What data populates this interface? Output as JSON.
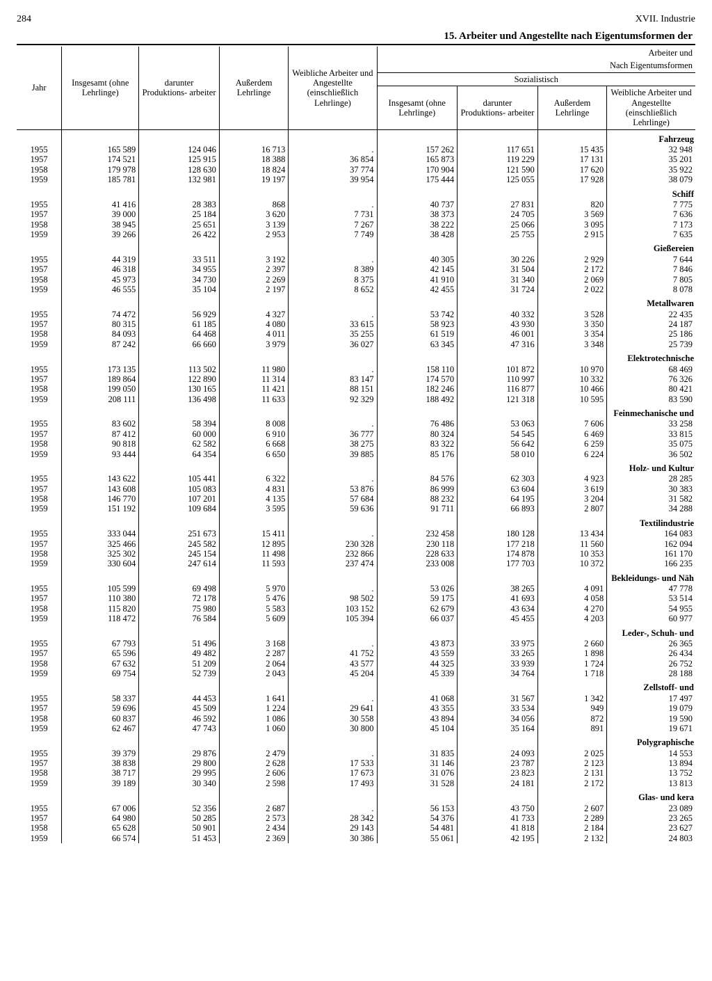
{
  "page": {
    "number": "284",
    "chapter": "XVII. Industrie"
  },
  "title": "15. Arbeiter und Angestellte nach Eigentumsformen der",
  "headers": {
    "super_right": "Arbeiter und",
    "nach_eigentum": "Nach Eigentumsformen",
    "sozialistisch": "Sozialistisch",
    "jahr": "Jahr",
    "c1": "Insgesamt (ohne Lehrlinge)",
    "c2": "darunter Produktions- arbeiter",
    "c3": "Außerdem Lehrlinge",
    "c4": "Weibliche Arbeiter und Angestellte (einschließlich Lehrlinge)",
    "c5": "Insgesamt (ohne Lehrlinge)",
    "c6": "darunter Produktions- arbeiter",
    "c7": "Außerdem Lehrlinge",
    "c8": "Weibliche Arbeiter und Angestellte (einschließlich Lehrlinge)"
  },
  "sections": [
    {
      "label": "Fahrzeug",
      "rows": [
        [
          "1955",
          "165 589",
          "124 046",
          "16 713",
          ".",
          "157 262",
          "117 651",
          "15 435",
          "32 948"
        ],
        [
          "1957",
          "174 521",
          "125 915",
          "18 388",
          "36 854",
          "165 873",
          "119 229",
          "17 131",
          "35 201"
        ],
        [
          "1958",
          "179 978",
          "128 630",
          "18 824",
          "37 774",
          "170 904",
          "121 590",
          "17 620",
          "35 922"
        ],
        [
          "1959",
          "185 781",
          "132 981",
          "19 197",
          "39 954",
          "175 444",
          "125 055",
          "17 928",
          "38 079"
        ]
      ]
    },
    {
      "label": "Schiff",
      "rows": [
        [
          "1955",
          "41 416",
          "28 383",
          "868",
          ".",
          "40 737",
          "27 831",
          "820",
          "7 775"
        ],
        [
          "1957",
          "39 000",
          "25 184",
          "3 620",
          "7 731",
          "38 373",
          "24 705",
          "3 569",
          "7 636"
        ],
        [
          "1958",
          "38 945",
          "25 651",
          "3 139",
          "7 267",
          "38 222",
          "25 066",
          "3 095",
          "7 173"
        ],
        [
          "1959",
          "39 266",
          "26 422",
          "2 953",
          "7 749",
          "38 428",
          "25 755",
          "2 915",
          "7 635"
        ]
      ]
    },
    {
      "label": "Gießereien",
      "rows": [
        [
          "1955",
          "44 319",
          "33 511",
          "3 192",
          ".",
          "40 305",
          "30 226",
          "2 929",
          "7 644"
        ],
        [
          "1957",
          "46 318",
          "34 955",
          "2 397",
          "8 389",
          "42 145",
          "31 504",
          "2 172",
          "7 846"
        ],
        [
          "1958",
          "45 973",
          "34 730",
          "2 269",
          "8 375",
          "41 910",
          "31 340",
          "2 069",
          "7 805"
        ],
        [
          "1959",
          "46 555",
          "35 104",
          "2 197",
          "8 652",
          "42 455",
          "31 724",
          "2 022",
          "8 078"
        ]
      ]
    },
    {
      "label": "Metallwaren",
      "rows": [
        [
          "1955",
          "74 472",
          "56 929",
          "4 327",
          ".",
          "53 742",
          "40 332",
          "3 528",
          "22 435"
        ],
        [
          "1957",
          "80 315",
          "61 185",
          "4 080",
          "33 615",
          "58 923",
          "43 930",
          "3 350",
          "24 187"
        ],
        [
          "1958",
          "84 093",
          "64 468",
          "4 011",
          "35 255",
          "61 519",
          "46 001",
          "3 354",
          "25 186"
        ],
        [
          "1959",
          "87 242",
          "66 660",
          "3 979",
          "36 027",
          "63 345",
          "47 316",
          "3 348",
          "25 739"
        ]
      ]
    },
    {
      "label": "Elektrotechnische",
      "rows": [
        [
          "1955",
          "173 135",
          "113 502",
          "11 980",
          ".",
          "158 110",
          "101 872",
          "10 970",
          "68 469"
        ],
        [
          "1957",
          "189 864",
          "122 890",
          "11 314",
          "83 147",
          "174 570",
          "110 997",
          "10 332",
          "76 326"
        ],
        [
          "1958",
          "199 050",
          "130 165",
          "11 421",
          "88 151",
          "182 246",
          "116 877",
          "10 466",
          "80 421"
        ],
        [
          "1959",
          "208 111",
          "136 498",
          "11 633",
          "92 329",
          "188 492",
          "121 318",
          "10 595",
          "83 590"
        ]
      ]
    },
    {
      "label": "Feinmechanische und",
      "rows": [
        [
          "1955",
          "83 602",
          "58 394",
          "8 008",
          ".",
          "76 486",
          "53 063",
          "7 606",
          "33 258"
        ],
        [
          "1957",
          "87 412",
          "60 000",
          "6 910",
          "36 777",
          "80 324",
          "54 545",
          "6 469",
          "33 815"
        ],
        [
          "1958",
          "90 818",
          "62 582",
          "6 668",
          "38 275",
          "83 322",
          "56 642",
          "6 259",
          "35 075"
        ],
        [
          "1959",
          "93 444",
          "64 354",
          "6 650",
          "39 885",
          "85 176",
          "58 010",
          "6 224",
          "36 502"
        ]
      ]
    },
    {
      "label": "Holz- und Kultur",
      "rows": [
        [
          "1955",
          "143 622",
          "105 441",
          "6 322",
          ".",
          "84 576",
          "62 303",
          "4 923",
          "28 285"
        ],
        [
          "1957",
          "143 608",
          "105 083",
          "4 831",
          "53 876",
          "86 999",
          "63 604",
          "3 619",
          "30 383"
        ],
        [
          "1958",
          "146 770",
          "107 201",
          "4 135",
          "57 684",
          "88 232",
          "64 195",
          "3 204",
          "31 582"
        ],
        [
          "1959",
          "151 192",
          "109 684",
          "3 595",
          "59 636",
          "91 711",
          "66 893",
          "2 807",
          "34 288"
        ]
      ]
    },
    {
      "label": "Textilindustrie",
      "rows": [
        [
          "1955",
          "333 044",
          "251 673",
          "15 411",
          ".",
          "232 458",
          "180 128",
          "13 434",
          "164 083"
        ],
        [
          "1957",
          "325 466",
          "245 582",
          "12 895",
          "230 328",
          "230 118",
          "177 218",
          "11 560",
          "162 094"
        ],
        [
          "1958",
          "325 302",
          "245 154",
          "11 498",
          "232 866",
          "228 633",
          "174 878",
          "10 353",
          "161 170"
        ],
        [
          "1959",
          "330 604",
          "247 614",
          "11 593",
          "237 474",
          "233 008",
          "177 703",
          "10 372",
          "166 235"
        ]
      ]
    },
    {
      "label": "Bekleidungs- und Näh",
      "rows": [
        [
          "1955",
          "105 599",
          "69 498",
          "5 970",
          ".",
          "53 026",
          "38 265",
          "4 091",
          "47 778"
        ],
        [
          "1957",
          "110 380",
          "72 178",
          "5 476",
          "98 502",
          "59 175",
          "41 693",
          "4 058",
          "53 514"
        ],
        [
          "1958",
          "115 820",
          "75 980",
          "5 583",
          "103 152",
          "62 679",
          "43 634",
          "4 270",
          "54 955"
        ],
        [
          "1959",
          "118 472",
          "76 584",
          "5 609",
          "105 394",
          "66 037",
          "45 455",
          "4 203",
          "60 977"
        ]
      ]
    },
    {
      "label": "Leder-, Schuh- und",
      "rows": [
        [
          "1955",
          "67 793",
          "51 496",
          "3 168",
          ".",
          "43 873",
          "33 975",
          "2 660",
          "26 365"
        ],
        [
          "1957",
          "65 596",
          "49 482",
          "2 287",
          "41 752",
          "43 559",
          "33 265",
          "1 898",
          "26 434"
        ],
        [
          "1958",
          "67 632",
          "51 209",
          "2 064",
          "43 577",
          "44 325",
          "33 939",
          "1 724",
          "26 752"
        ],
        [
          "1959",
          "69 754",
          "52 739",
          "2 043",
          "45 204",
          "45 339",
          "34 764",
          "1 718",
          "28 188"
        ]
      ]
    },
    {
      "label": "Zellstoff- und",
      "rows": [
        [
          "1955",
          "58 337",
          "44 453",
          "1 641",
          ".",
          "41 068",
          "31 567",
          "1 342",
          "17 497"
        ],
        [
          "1957",
          "59 696",
          "45 509",
          "1 224",
          "29 641",
          "43 355",
          "33 534",
          "949",
          "19 079"
        ],
        [
          "1958",
          "60 837",
          "46 592",
          "1 086",
          "30 558",
          "43 894",
          "34 056",
          "872",
          "19 590"
        ],
        [
          "1959",
          "62 467",
          "47 743",
          "1 060",
          "30 800",
          "45 104",
          "35 164",
          "891",
          "19 671"
        ]
      ]
    },
    {
      "label": "Polygraphische",
      "rows": [
        [
          "1955",
          "39 379",
          "29 876",
          "2 479",
          ".",
          "31 835",
          "24 093",
          "2 025",
          "14 553"
        ],
        [
          "1957",
          "38 838",
          "29 800",
          "2 628",
          "17 533",
          "31 146",
          "23 787",
          "2 123",
          "13 894"
        ],
        [
          "1958",
          "38 717",
          "29 995",
          "2 606",
          "17 673",
          "31 076",
          "23 823",
          "2 131",
          "13 752"
        ],
        [
          "1959",
          "39 189",
          "30 340",
          "2 598",
          "17 493",
          "31 528",
          "24 181",
          "2 172",
          "13 813"
        ]
      ]
    },
    {
      "label": "Glas- und kera",
      "rows": [
        [
          "1955",
          "67 006",
          "52 356",
          "2 687",
          ".",
          "56 153",
          "43 750",
          "2 607",
          "23 089"
        ],
        [
          "1957",
          "64 980",
          "50 285",
          "2 573",
          "28 342",
          "54 376",
          "41 733",
          "2 289",
          "23 265"
        ],
        [
          "1958",
          "65 628",
          "50 901",
          "2 434",
          "29 143",
          "54 481",
          "41 818",
          "2 184",
          "23 627"
        ],
        [
          "1959",
          "66 574",
          "51 453",
          "2 369",
          "30 386",
          "55 061",
          "42 195",
          "2 132",
          "24 803"
        ]
      ]
    }
  ]
}
